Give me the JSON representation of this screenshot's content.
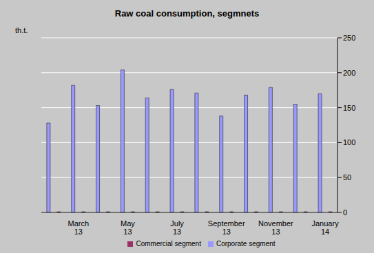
{
  "chart_data": {
    "type": "bar",
    "title": "Raw coal consumption, segmnets",
    "y_label": "th.t.",
    "categories": [
      null,
      "March 13",
      null,
      "May 13",
      null,
      "July 13",
      null,
      "September 13",
      null,
      "November 13",
      null,
      "January 14"
    ],
    "series": [
      {
        "name": "Corporate segment",
        "color": "#9999ff",
        "values": [
          128,
          182,
          153,
          204,
          164,
          176,
          171,
          138,
          168,
          179,
          155,
          170
        ]
      },
      {
        "name": "Commercial segment",
        "color": "#993366",
        "values": [
          1,
          1,
          1,
          1,
          1,
          1,
          1,
          1,
          1,
          1,
          1,
          1
        ]
      }
    ],
    "ylim": [
      0,
      250
    ],
    "yticks": [
      0,
      50,
      100,
      150,
      200,
      250
    ],
    "grid": true,
    "legend": "bottom"
  }
}
